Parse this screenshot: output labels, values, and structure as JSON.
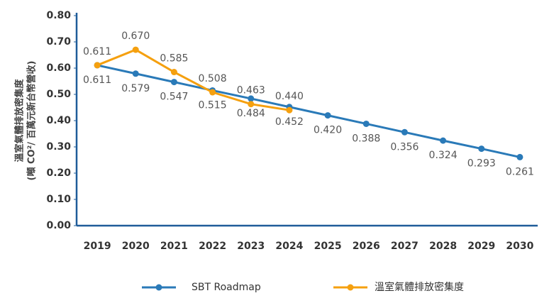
{
  "chart_data": {
    "type": "line",
    "ylabel": "溫室氣體排放密集度",
    "ylabel_sub": "(噸 CO²/ 百萬元新台幣營收)",
    "categories": [
      "2019",
      "2020",
      "2021",
      "2022",
      "2023",
      "2024",
      "2025",
      "2026",
      "2027",
      "2028",
      "2029",
      "2030"
    ],
    "series": [
      {
        "name": "SBT Roadmap",
        "color": "#2a7ab8",
        "values": [
          0.611,
          0.579,
          0.547,
          0.515,
          0.484,
          0.452,
          0.42,
          0.388,
          0.356,
          0.324,
          0.293,
          0.261
        ],
        "value_labels": [
          "0.611",
          "0.579",
          "0.547",
          "0.515",
          "0.484",
          "0.452",
          "0.420",
          "0.388",
          "0.356",
          "0.324",
          "0.293",
          "0.261"
        ]
      },
      {
        "name": "溫室氣體排放密集度",
        "color": "#f5a00f",
        "values": [
          0.611,
          0.67,
          0.585,
          0.508,
          0.463,
          0.44,
          null,
          null,
          null,
          null,
          null,
          null
        ],
        "value_labels": [
          "0.611",
          "0.670",
          "0.585",
          "0.508",
          "0.463",
          "0.440",
          null,
          null,
          null,
          null,
          null,
          null
        ]
      }
    ],
    "ylim": [
      0,
      0.8
    ],
    "yticks": [
      {
        "value": 0,
        "label": "0.00"
      },
      {
        "value": 0.1,
        "label": "0.10"
      },
      {
        "value": 0.2,
        "label": "0.20"
      },
      {
        "value": 0.3,
        "label": "0.30"
      },
      {
        "value": 0.4,
        "label": "0.40"
      },
      {
        "value": 0.5,
        "label": "0.50"
      },
      {
        "value": 0.6,
        "label": "0.60"
      },
      {
        "value": 0.7,
        "label": "0.70"
      },
      {
        "value": 0.8,
        "label": "0.80"
      }
    ],
    "grid": false,
    "legend": "bottom"
  }
}
